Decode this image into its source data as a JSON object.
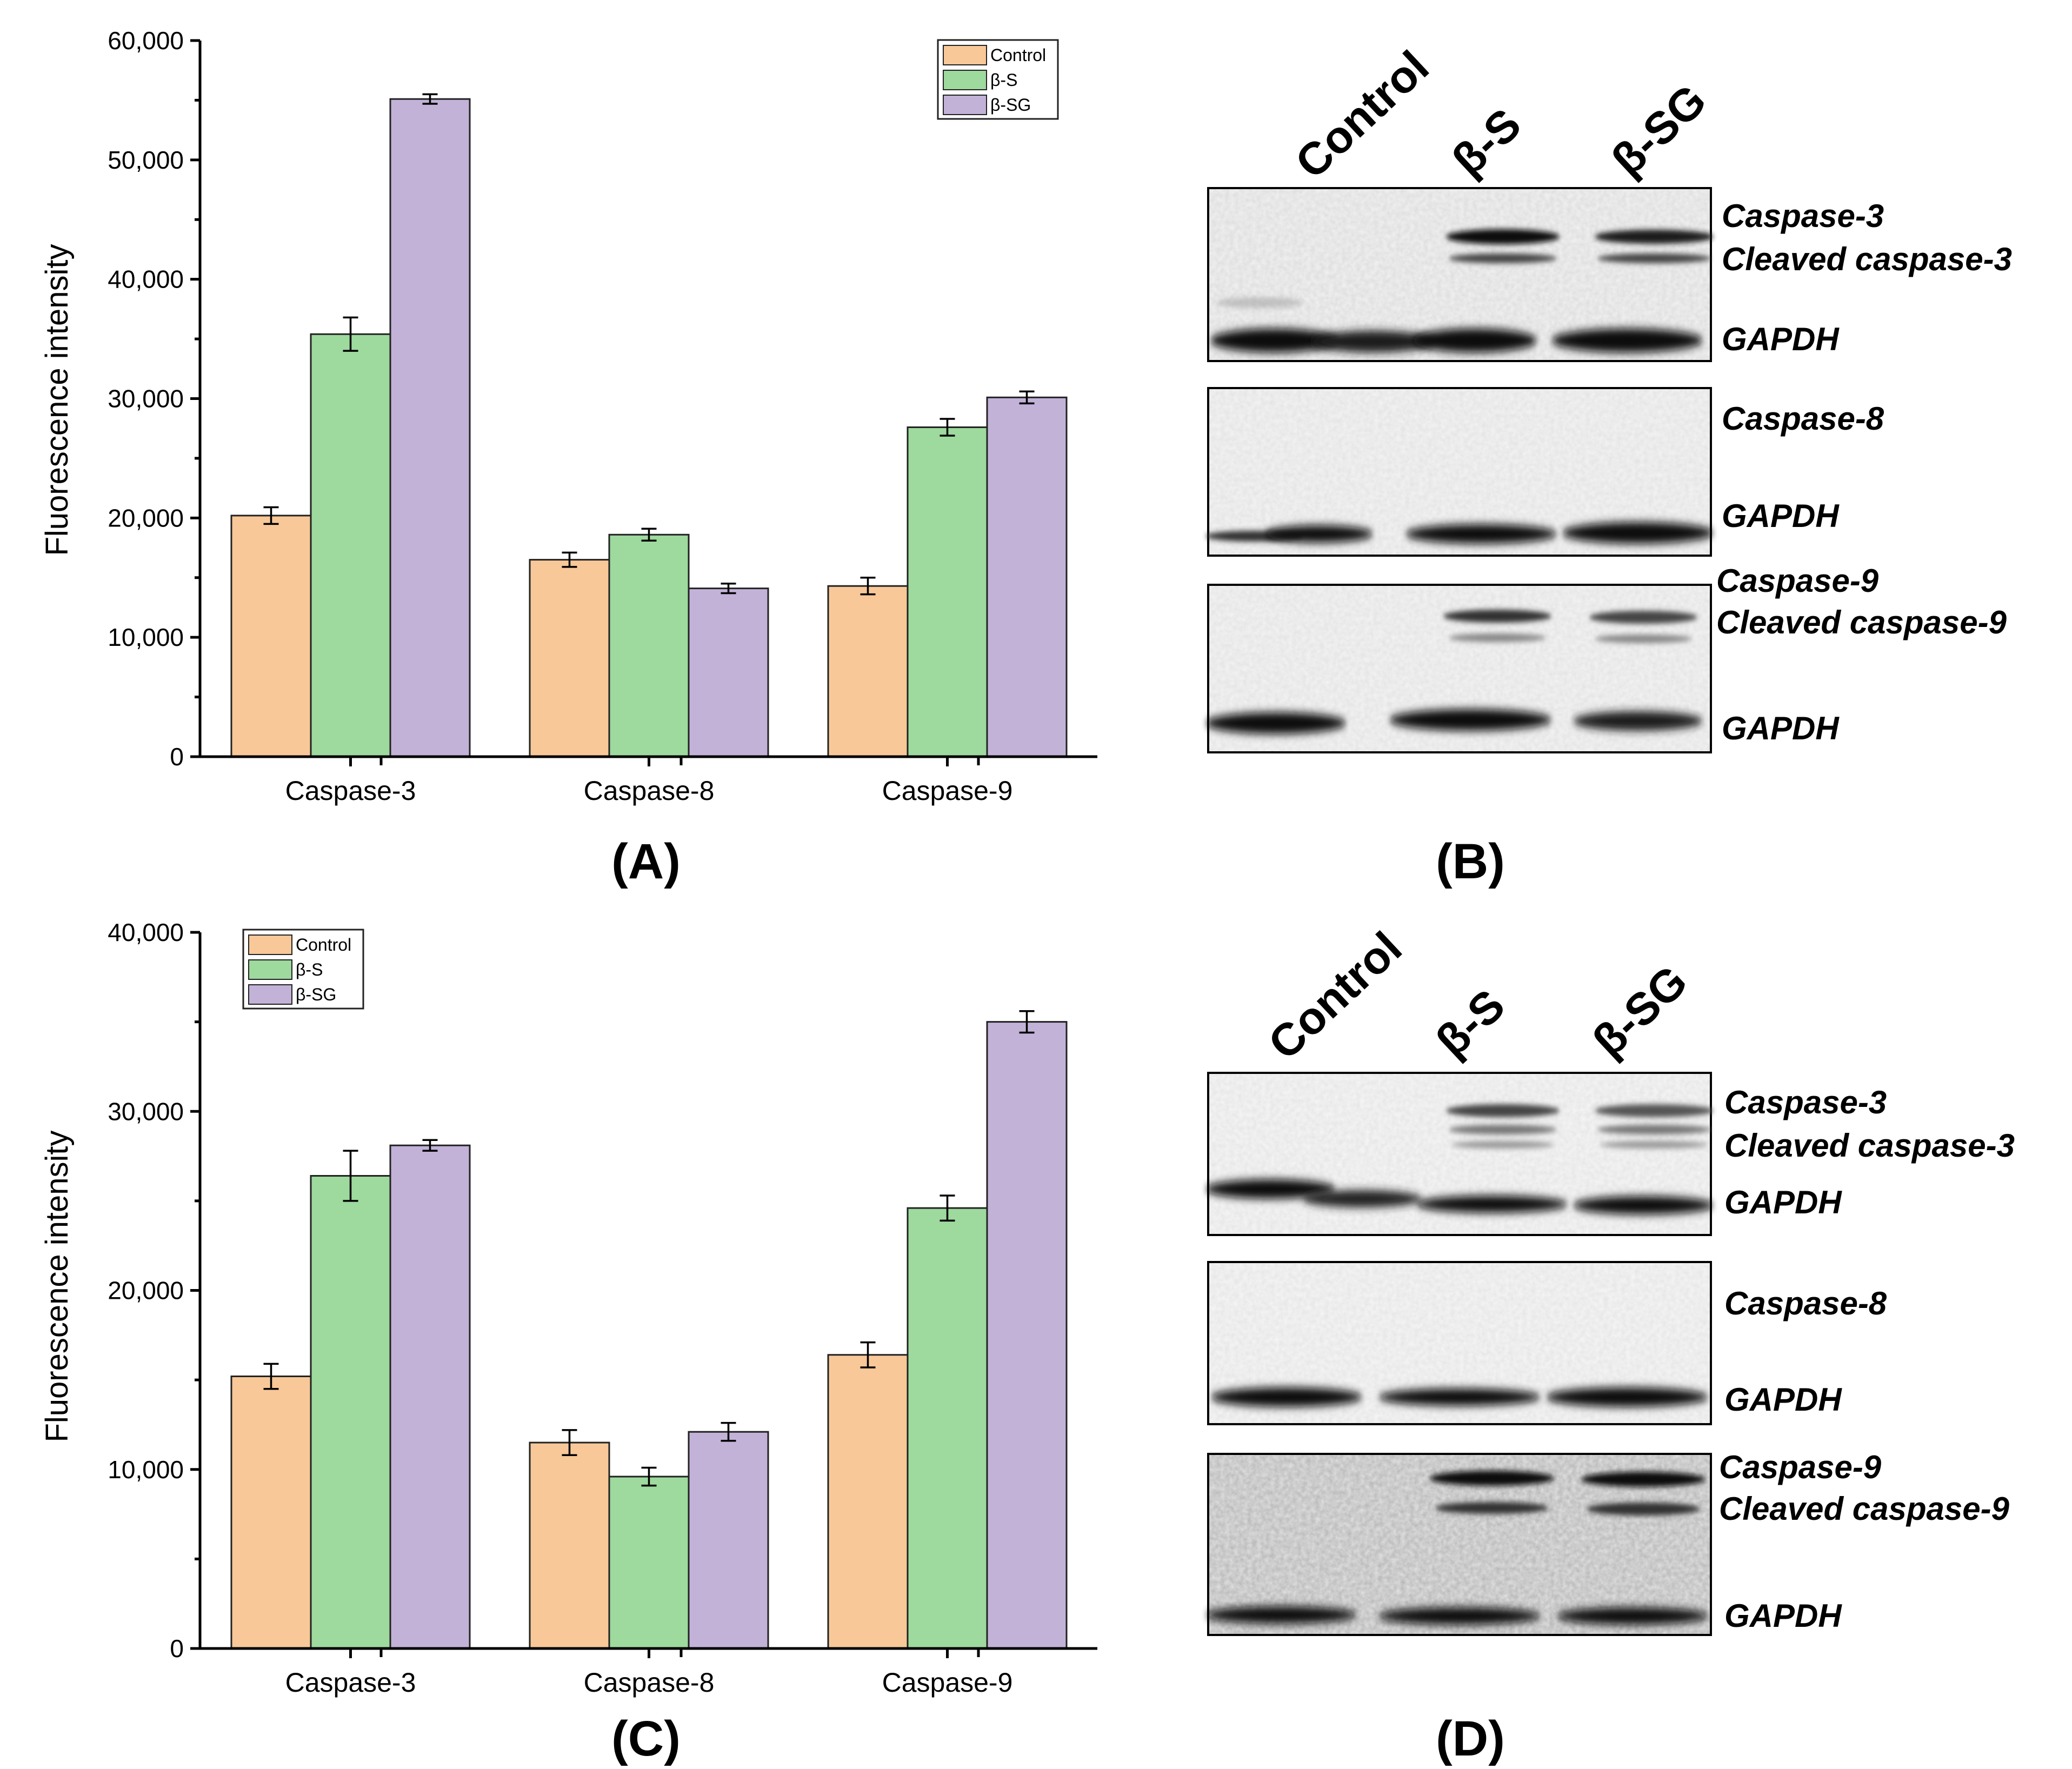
{
  "colors": {
    "Control": "#F8C898",
    "β-S": "#9ED99E",
    "β-SG": "#C2B2D8"
  },
  "chart_data": [
    {
      "type": "bar",
      "panel": "(A)",
      "categories": [
        "Caspase-3",
        "Caspase-8",
        "Caspase-9"
      ],
      "series": [
        {
          "name": "Control",
          "values": [
            20200,
            16500,
            14300
          ],
          "errors": [
            700,
            600,
            700
          ]
        },
        {
          "name": "β-S",
          "values": [
            35400,
            18600,
            27600
          ],
          "errors": [
            1400,
            500,
            700
          ]
        },
        {
          "name": "β-SG",
          "values": [
            55100,
            14100,
            30100
          ],
          "errors": [
            400,
            400,
            500
          ]
        }
      ],
      "ylabel": "Fluorescence intensity",
      "ylim": [
        0,
        60000
      ],
      "yticks": [
        0,
        10000,
        20000,
        30000,
        40000,
        50000,
        60000
      ],
      "ytick_labels": [
        "0",
        "10,000",
        "20,000",
        "30,000",
        "40,000",
        "50,000",
        "60,000"
      ],
      "legend": [
        "Control",
        "β-S",
        "β-SG"
      ],
      "legend_position": "top-right"
    },
    {
      "type": "bar",
      "panel": "(C)",
      "categories": [
        "Caspase-3",
        "Caspase-8",
        "Caspase-9"
      ],
      "series": [
        {
          "name": "Control",
          "values": [
            15200,
            11500,
            16400
          ],
          "errors": [
            700,
            700,
            700
          ]
        },
        {
          "name": "β-S",
          "values": [
            26400,
            9600,
            24600
          ],
          "errors": [
            1400,
            500,
            700
          ]
        },
        {
          "name": "β-SG",
          "values": [
            28100,
            12100,
            35000
          ],
          "errors": [
            300,
            500,
            600
          ]
        }
      ],
      "ylabel": "Fluorescence intensity",
      "ylim": [
        0,
        40000
      ],
      "yticks": [
        0,
        10000,
        20000,
        30000,
        40000
      ],
      "ytick_labels": [
        "0",
        "10,000",
        "20,000",
        "30,000",
        "40,000"
      ],
      "legend": [
        "Control",
        "β-S",
        "β-SG"
      ],
      "legend_position": "top-left"
    }
  ],
  "blots": [
    {
      "panel": "(B)",
      "lanes": [
        "Control",
        "β-S",
        "β-SG"
      ],
      "membranes": [
        {
          "labels": [
            "Caspase-3",
            "Cleaved caspase-3",
            "GAPDH"
          ]
        },
        {
          "labels": [
            "Caspase-8",
            "GAPDH"
          ]
        },
        {
          "labels": [
            "Caspase-9",
            "Cleaved caspase-9",
            "GAPDH"
          ]
        }
      ]
    },
    {
      "panel": "(D)",
      "lanes": [
        "Control",
        "β-S",
        "β-SG"
      ],
      "membranes": [
        {
          "labels": [
            "Caspase-3",
            "Cleaved caspase-3",
            "GAPDH"
          ]
        },
        {
          "labels": [
            "Caspase-8",
            "GAPDH"
          ]
        },
        {
          "labels": [
            "Caspase-9",
            "Cleaved caspase-9",
            "GAPDH"
          ]
        }
      ]
    }
  ]
}
